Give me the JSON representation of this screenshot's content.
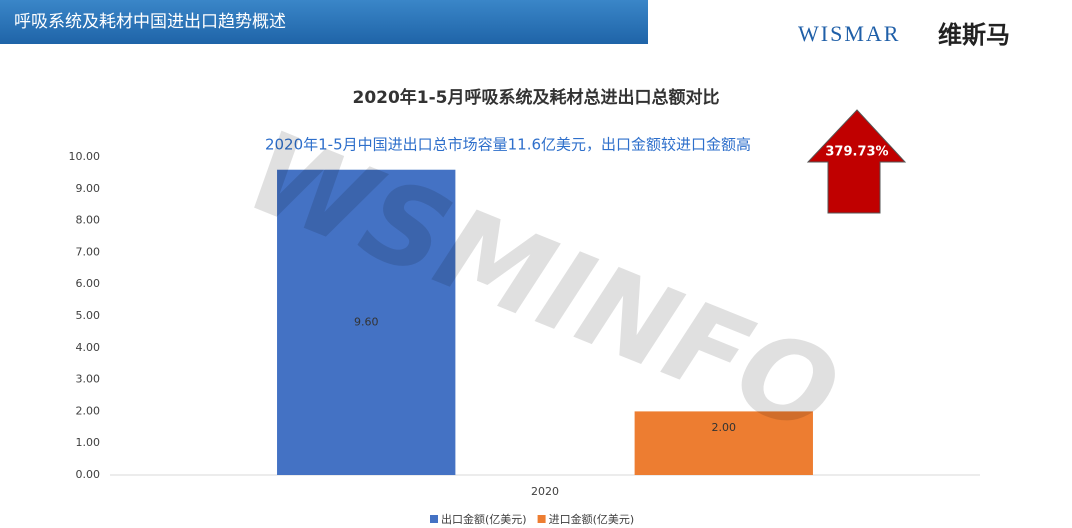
{
  "header": {
    "title": "呼吸系统及耗材中国进出口趋势概述",
    "logo": "WISMAR",
    "logo_cn": "维斯马"
  },
  "chart_data": {
    "type": "bar",
    "title": "2020年1-5月呼吸系统及耗材总进出口总额对比",
    "subtitle": "2020年1-5月中国进出口总市场容量11.6亿美元，出口金额较进口金额高",
    "annotation": "379.73%",
    "watermark": "WSMINFO",
    "categories": [
      "2020"
    ],
    "series": [
      {
        "name": "出口金额(亿美元)",
        "color": "#4472c4",
        "values": [
          9.6
        ],
        "value_labels": [
          "9.60"
        ]
      },
      {
        "name": "进口金额(亿美元)",
        "color": "#ed7d31",
        "values": [
          2.0
        ],
        "value_labels": [
          "2.00"
        ]
      }
    ],
    "ylim": [
      0,
      10
    ],
    "yticks": [
      {
        "value": 0,
        "label": "0.00"
      },
      {
        "value": 1,
        "label": "1.00"
      },
      {
        "value": 2,
        "label": "2.00"
      },
      {
        "value": 3,
        "label": "3.00"
      },
      {
        "value": 4,
        "label": "4.00"
      },
      {
        "value": 5,
        "label": "5.00"
      },
      {
        "value": 6,
        "label": "6.00"
      },
      {
        "value": 7,
        "label": "7.00"
      },
      {
        "value": 8,
        "label": "8.00"
      },
      {
        "value": 9,
        "label": "9.00"
      },
      {
        "value": 10,
        "label": "10.00"
      }
    ],
    "grid": false,
    "legend": "bottom"
  }
}
